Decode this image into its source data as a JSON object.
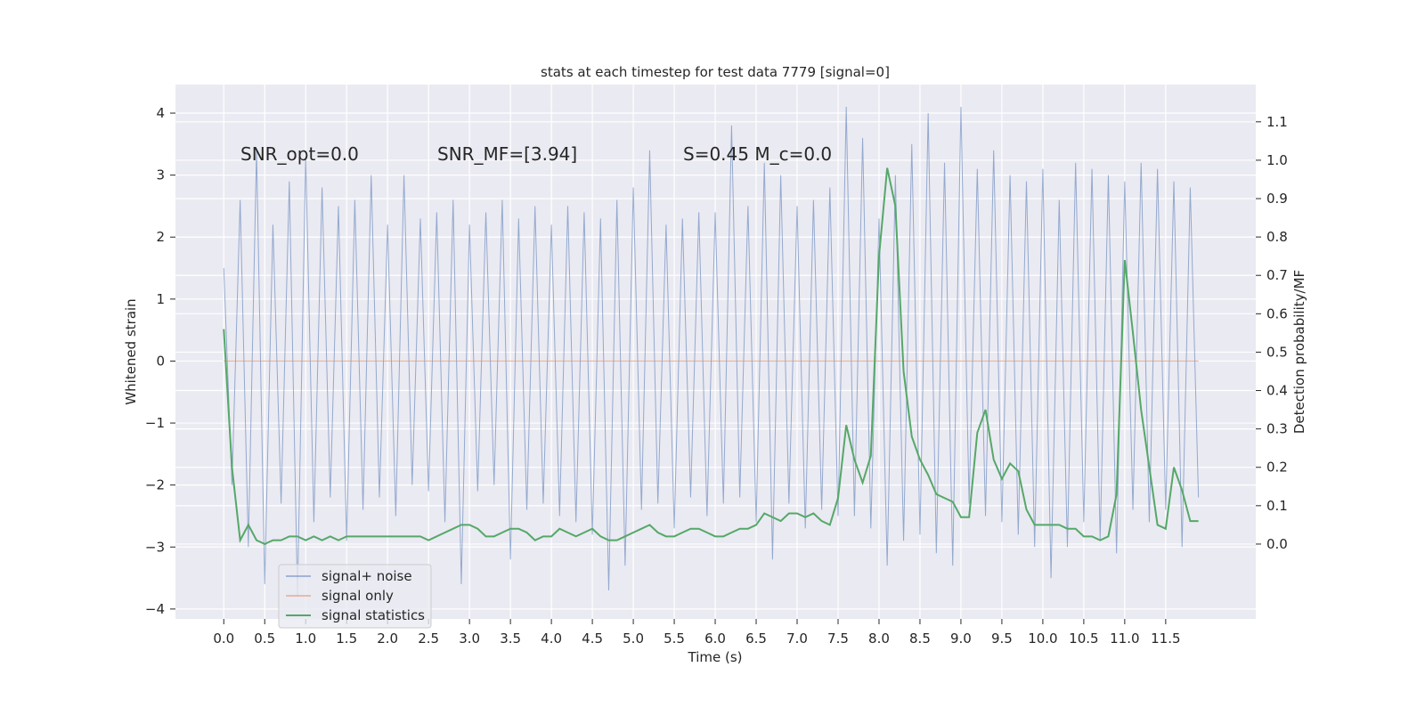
{
  "chart_data": {
    "type": "line",
    "title": "stats at each timestep for test data 7779 [signal=0]",
    "xlabel": "Time (s)",
    "ylabel": "Whitened strain",
    "y2label": "Detection probability/MF",
    "annotations": [
      "SNR_opt=0.0",
      "SNR_MF=[3.94]",
      "S=0.45   M_c=0.0"
    ],
    "grid": true,
    "legend": "lower left",
    "xlim": [
      -0.59,
      12.6
    ],
    "ylim": [
      -4.16,
      4.46
    ],
    "y2lim": [
      -0.195,
      1.197
    ],
    "xticks": [
      {
        "value": 0,
        "label": "0.0"
      },
      {
        "value": 0.5,
        "label": "0.5"
      },
      {
        "value": 1,
        "label": "1.0"
      },
      {
        "value": 1.5,
        "label": "1.5"
      },
      {
        "value": 2,
        "label": "2.0"
      },
      {
        "value": 2.5,
        "label": "2.5"
      },
      {
        "value": 3,
        "label": "3.0"
      },
      {
        "value": 3.5,
        "label": "3.5"
      },
      {
        "value": 4,
        "label": "4.0"
      },
      {
        "value": 4.5,
        "label": "4.5"
      },
      {
        "value": 5,
        "label": "5.0"
      },
      {
        "value": 5.5,
        "label": "5.5"
      },
      {
        "value": 6,
        "label": "6.0"
      },
      {
        "value": 6.5,
        "label": "6.5"
      },
      {
        "value": 7,
        "label": "7.0"
      },
      {
        "value": 7.5,
        "label": "7.5"
      },
      {
        "value": 8,
        "label": "8.0"
      },
      {
        "value": 8.5,
        "label": "8.5"
      },
      {
        "value": 9,
        "label": "9.0"
      },
      {
        "value": 9.5,
        "label": "9.5"
      },
      {
        "value": 10,
        "label": "10.0"
      },
      {
        "value": 10.5,
        "label": "10.5"
      },
      {
        "value": 11,
        "label": "11.0"
      },
      {
        "value": 11.5,
        "label": "11.5"
      }
    ],
    "yticks": [
      {
        "value": -4,
        "label": "−4"
      },
      {
        "value": -3,
        "label": "−3"
      },
      {
        "value": -2,
        "label": "−2"
      },
      {
        "value": -1,
        "label": "−1"
      },
      0,
      1,
      2,
      3,
      4
    ],
    "y2ticks": [
      {
        "value": 0,
        "label": "0.0"
      },
      {
        "value": 0.1,
        "label": "0.1"
      },
      {
        "value": 0.2,
        "label": "0.2"
      },
      {
        "value": 0.3,
        "label": "0.3"
      },
      {
        "value": 0.4,
        "label": "0.4"
      },
      {
        "value": 0.5,
        "label": "0.5"
      },
      {
        "value": 0.6,
        "label": "0.6"
      },
      {
        "value": 0.7,
        "label": "0.7"
      },
      {
        "value": 0.8,
        "label": "0.8"
      },
      {
        "value": 0.9,
        "label": "0.9"
      },
      {
        "value": 1,
        "label": "1.0"
      },
      {
        "value": 1.1,
        "label": "1.1"
      }
    ],
    "x": [
      0,
      0.1,
      0.2,
      0.3,
      0.4,
      0.5,
      0.6,
      0.7,
      0.8,
      0.9,
      1,
      1.1,
      1.2,
      1.3,
      1.4,
      1.5,
      1.6,
      1.7,
      1.8,
      1.9,
      2,
      2.1,
      2.2,
      2.3,
      2.4,
      2.5,
      2.6,
      2.7,
      2.8,
      2.9,
      3,
      3.1,
      3.2,
      3.3,
      3.4,
      3.5,
      3.6,
      3.7,
      3.8,
      3.9,
      4,
      4.1,
      4.2,
      4.3,
      4.4,
      4.5,
      4.6,
      4.7,
      4.8,
      4.9,
      5,
      5.1,
      5.2,
      5.3,
      5.4,
      5.5,
      5.6,
      5.7,
      5.8,
      5.9,
      6,
      6.1,
      6.2,
      6.3,
      6.4,
      6.5,
      6.6,
      6.7,
      6.8,
      6.9,
      7,
      7.1,
      7.2,
      7.3,
      7.4,
      7.5,
      7.6,
      7.7,
      7.8,
      7.9,
      8,
      8.1,
      8.2,
      8.3,
      8.4,
      8.5,
      8.6,
      8.7,
      8.8,
      8.9,
      9,
      9.1,
      9.2,
      9.3,
      9.4,
      9.5,
      9.6,
      9.7,
      9.8,
      9.9,
      10,
      10.1,
      10.2,
      10.3,
      10.4,
      10.5,
      10.6,
      10.7,
      10.8,
      10.9,
      11,
      11.1,
      11.2,
      11.3,
      11.4,
      11.5,
      11.6,
      11.7,
      11.8,
      11.9
    ],
    "series": [
      {
        "name": "signal+ noise",
        "color": "#4c72b0",
        "values": [
          1.5,
          -2.0,
          2.6,
          -3.0,
          3.4,
          -3.6,
          2.2,
          -2.3,
          2.9,
          -3.8,
          3.3,
          -2.6,
          2.8,
          -2.2,
          2.5,
          -2.9,
          2.6,
          -2.4,
          3.0,
          -2.2,
          2.2,
          -2.5,
          3.0,
          -2.0,
          2.3,
          -2.1,
          2.4,
          -2.6,
          2.6,
          -3.6,
          2.2,
          -2.1,
          2.4,
          -2.0,
          2.6,
          -3.2,
          2.3,
          -2.4,
          2.5,
          -2.3,
          2.2,
          -2.5,
          2.5,
          -2.6,
          2.4,
          -2.8,
          2.3,
          -3.7,
          2.6,
          -3.3,
          2.8,
          -2.4,
          3.4,
          -2.3,
          2.2,
          -2.7,
          2.3,
          -2.2,
          2.4,
          -2.5,
          2.4,
          -2.3,
          3.8,
          -2.2,
          2.5,
          -2.6,
          3.2,
          -3.2,
          3.0,
          -2.3,
          2.5,
          -2.7,
          2.6,
          -2.4,
          2.8,
          -2.5,
          4.1,
          -2.5,
          3.6,
          -2.7,
          2.3,
          -3.3,
          3.0,
          -2.9,
          3.5,
          -2.8,
          4.0,
          -3.1,
          3.2,
          -3.3,
          4.1,
          -2.3,
          3.1,
          -2.5,
          3.4,
          -2.6,
          3.0,
          -2.8,
          2.9,
          -3.0,
          3.1,
          -3.5,
          2.6,
          -3.0,
          3.2,
          -2.6,
          3.1,
          -2.9,
          3.0,
          -3.1,
          2.9,
          -2.4,
          3.2,
          -2.6,
          3.1,
          -2.4,
          2.9,
          -3.0,
          2.8,
          -2.2
        ]
      },
      {
        "name": "signal only",
        "color": "#dd8452",
        "values": [
          0,
          0,
          0,
          0,
          0,
          0,
          0,
          0,
          0,
          0,
          0,
          0,
          0,
          0,
          0,
          0,
          0,
          0,
          0,
          0,
          0,
          0,
          0,
          0,
          0,
          0,
          0,
          0,
          0,
          0,
          0,
          0,
          0,
          0,
          0,
          0,
          0,
          0,
          0,
          0,
          0,
          0,
          0,
          0,
          0,
          0,
          0,
          0,
          0,
          0,
          0,
          0,
          0,
          0,
          0,
          0,
          0,
          0,
          0,
          0,
          0,
          0,
          0,
          0,
          0,
          0,
          0,
          0,
          0,
          0,
          0,
          0,
          0,
          0,
          0,
          0,
          0,
          0,
          0,
          0,
          0,
          0,
          0,
          0,
          0,
          0,
          0,
          0,
          0,
          0,
          0,
          0,
          0,
          0,
          0,
          0,
          0,
          0,
          0,
          0,
          0,
          0,
          0,
          0,
          0,
          0,
          0,
          0,
          0,
          0,
          0,
          0,
          0,
          0,
          0,
          0,
          0,
          0,
          0,
          0
        ]
      },
      {
        "name": "signal statistics",
        "color": "#55a868",
        "axis": "y2",
        "values": [
          0.56,
          0.2,
          0.01,
          0.05,
          0.01,
          0.0,
          0.01,
          0.01,
          0.02,
          0.02,
          0.01,
          0.02,
          0.01,
          0.02,
          0.01,
          0.02,
          0.02,
          0.02,
          0.02,
          0.02,
          0.02,
          0.02,
          0.02,
          0.02,
          0.02,
          0.01,
          0.02,
          0.03,
          0.04,
          0.05,
          0.05,
          0.04,
          0.02,
          0.02,
          0.03,
          0.04,
          0.04,
          0.03,
          0.01,
          0.02,
          0.02,
          0.04,
          0.03,
          0.02,
          0.03,
          0.04,
          0.02,
          0.01,
          0.01,
          0.02,
          0.03,
          0.04,
          0.05,
          0.03,
          0.02,
          0.02,
          0.03,
          0.04,
          0.04,
          0.03,
          0.02,
          0.02,
          0.03,
          0.04,
          0.04,
          0.05,
          0.08,
          0.07,
          0.06,
          0.08,
          0.08,
          0.07,
          0.08,
          0.06,
          0.05,
          0.12,
          0.31,
          0.22,
          0.16,
          0.23,
          0.75,
          0.98,
          0.88,
          0.45,
          0.28,
          0.22,
          0.18,
          0.13,
          0.12,
          0.11,
          0.07,
          0.07,
          0.29,
          0.35,
          0.22,
          0.17,
          0.21,
          0.19,
          0.09,
          0.05,
          0.05,
          0.05,
          0.05,
          0.04,
          0.04,
          0.02,
          0.02,
          0.01,
          0.02,
          0.13,
          0.74,
          0.55,
          0.35,
          0.2,
          0.05,
          0.04,
          0.2,
          0.14,
          0.06,
          0.06
        ]
      }
    ]
  }
}
